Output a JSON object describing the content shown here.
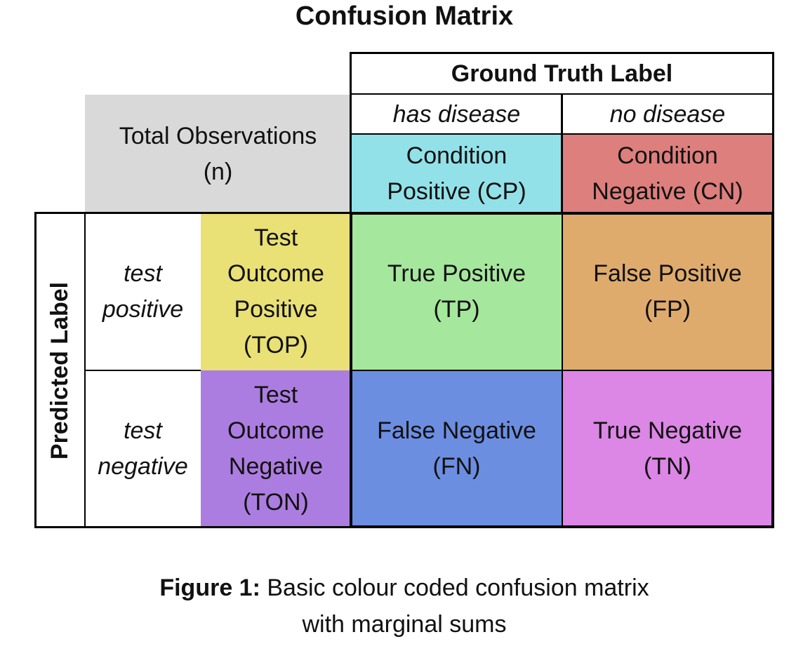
{
  "title": "Confusion Matrix",
  "header": {
    "ground_truth": "Ground Truth Label",
    "has_disease": "has disease",
    "no_disease": "no disease",
    "total_line1": "Total Observations",
    "total_line2": "(n)",
    "cp_line1": "Condition",
    "cp_line2": "Positive (CP)",
    "cn_line1": "Condition",
    "cn_line2": "Negative (CN)"
  },
  "rows": {
    "predicted_label": "Predicted Label",
    "test_positive_line1": "test",
    "test_positive_line2": "positive",
    "test_negative_line1": "test",
    "test_negative_line2": "negative",
    "top_lines": [
      "Test",
      "Outcome",
      "Positive",
      "(TOP)"
    ],
    "ton_lines": [
      "Test",
      "Outcome",
      "Negative",
      "(TON)"
    ]
  },
  "matrix": {
    "tp_line1": "True Positive",
    "tp_line2": "(TP)",
    "fp_line1": "False Positive",
    "fp_line2": "(FP)",
    "fn_line1": "False Negative",
    "fn_line2": "(FN)",
    "tn_line1": "True Negative",
    "tn_line2": "(TN)"
  },
  "colors": {
    "total": "#d9d9d9",
    "condition_positive": "#92e1e8",
    "condition_negative": "#dd7f7d",
    "test_outcome_positive": "#e9e076",
    "test_outcome_negative": "#ac7de0",
    "true_positive": "#a5e79c",
    "false_positive": "#dfab6d",
    "false_negative": "#6c8ee1",
    "true_negative": "#dc86e5"
  },
  "caption": {
    "label": "Figure 1:",
    "line1": " Basic colour coded confusion matrix",
    "line2": "with marginal sums"
  }
}
